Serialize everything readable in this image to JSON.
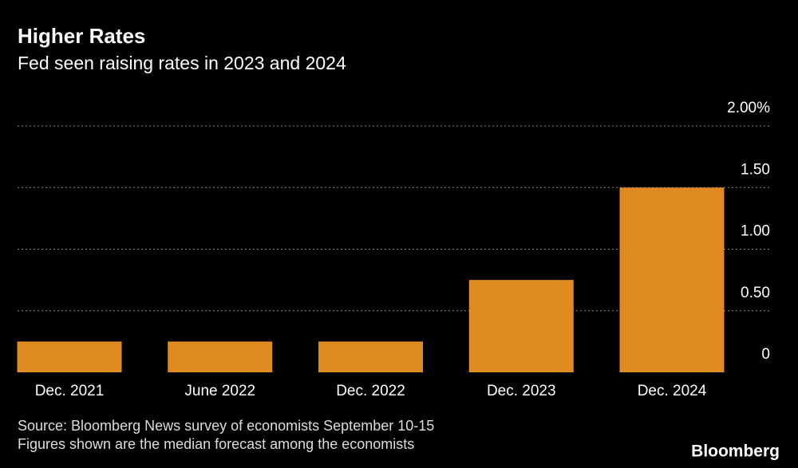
{
  "chart_data": {
    "type": "bar",
    "title": "Higher Rates",
    "subtitle": "Fed seen raising rates in 2023 and 2024",
    "categories": [
      "Dec. 2021",
      "June 2022",
      "Dec. 2022",
      "Dec. 2023",
      "Dec. 2024"
    ],
    "values": [
      0.25,
      0.25,
      0.25,
      0.75,
      1.5
    ],
    "color": "#e08a22",
    "ylim": [
      0,
      2
    ],
    "yticks": [
      0,
      {
        "value": 0.5,
        "label": "0.50"
      },
      {
        "value": 1,
        "label": "1.00"
      },
      {
        "value": 1.5,
        "label": "1.50"
      },
      {
        "value": 2,
        "label": "2.00%"
      }
    ],
    "grid": true,
    "source": "Source: Bloomberg News survey of economists September 10-15",
    "note": "Figures shown are the median forecast among the economists",
    "brand": "Bloomberg"
  }
}
